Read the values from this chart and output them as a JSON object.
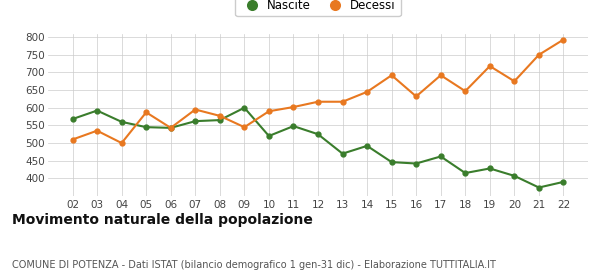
{
  "years": [
    "02",
    "03",
    "04",
    "05",
    "06",
    "07",
    "08",
    "09",
    "10",
    "11",
    "12",
    "13",
    "14",
    "15",
    "16",
    "17",
    "18",
    "19",
    "20",
    "21",
    "22"
  ],
  "nascite": [
    568,
    592,
    560,
    545,
    543,
    562,
    565,
    600,
    520,
    548,
    525,
    470,
    492,
    446,
    442,
    462,
    415,
    428,
    407,
    374,
    390
  ],
  "decessi": [
    510,
    535,
    500,
    587,
    543,
    595,
    577,
    545,
    590,
    602,
    617,
    617,
    645,
    692,
    632,
    692,
    647,
    718,
    675,
    750,
    793
  ],
  "nascite_color": "#3a7d2c",
  "decessi_color": "#e87820",
  "bg_color": "#ffffff",
  "grid_color": "#cccccc",
  "title": "Movimento naturale della popolazione",
  "subtitle": "COMUNE DI POTENZA - Dati ISTAT (bilancio demografico 1 gen-31 dic) - Elaborazione TUTTITALIA.IT",
  "legend_nascite": "Nascite",
  "legend_decessi": "Decessi",
  "ylim": [
    350,
    810
  ],
  "yticks": [
    400,
    450,
    500,
    550,
    600,
    650,
    700,
    750,
    800
  ],
  "title_fontsize": 10,
  "subtitle_fontsize": 7,
  "marker_size": 3.5,
  "linewidth": 1.5
}
